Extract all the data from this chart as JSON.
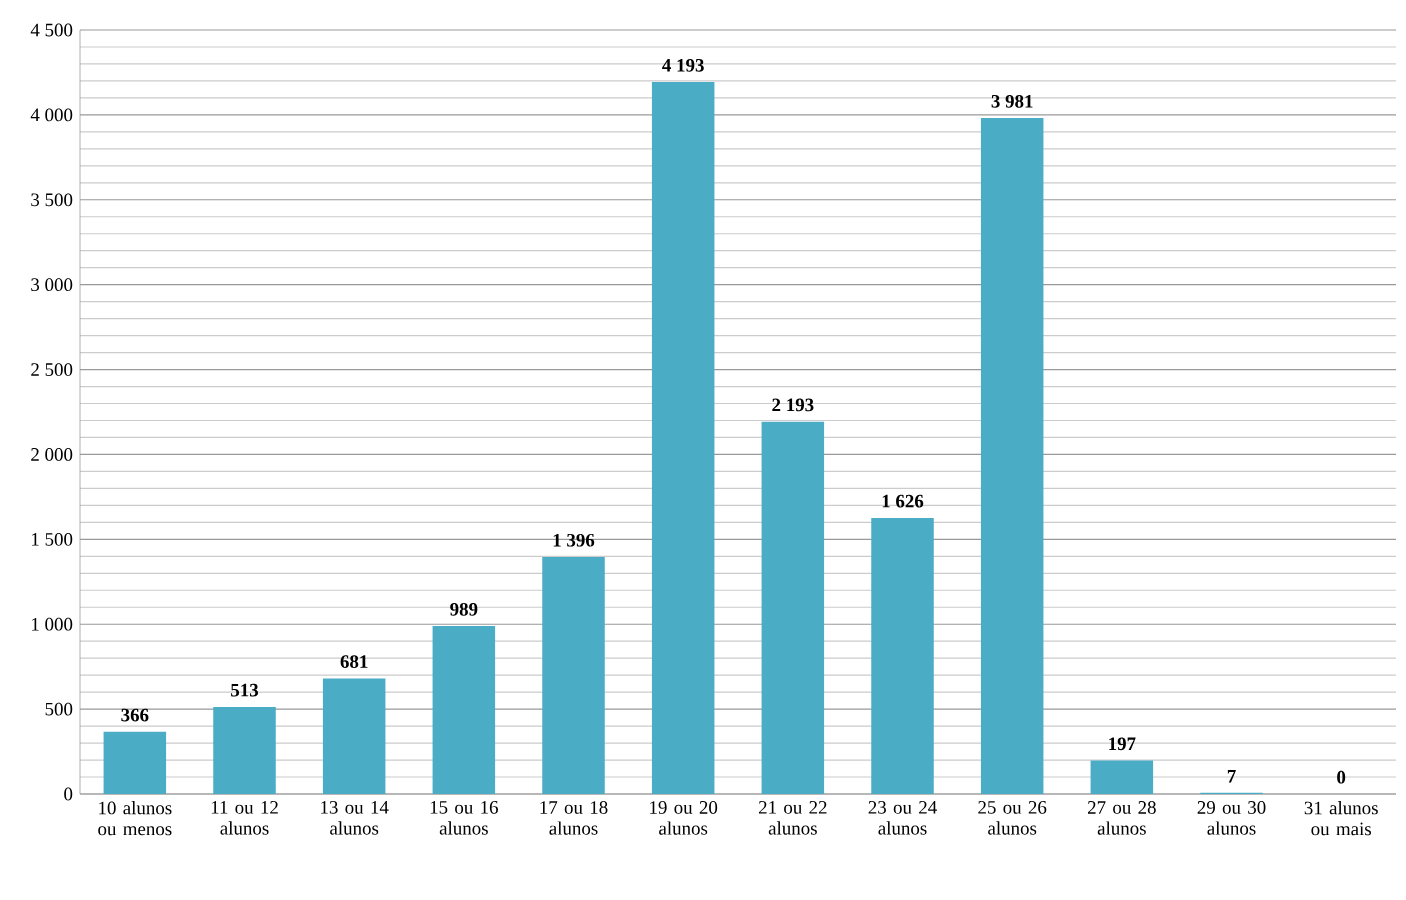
{
  "chart_data": {
    "type": "bar",
    "categories": [
      "10 alunos ou menos",
      "11 ou 12 alunos",
      "13 ou 14 alunos",
      "15 ou 16 alunos",
      "17 ou 18 alunos",
      "19 ou 20 alunos",
      "21 ou 22 alunos",
      "23 ou 24 alunos",
      "25 ou 26 alunos",
      "27 ou 28 alunos",
      "29 ou 30 alunos",
      "31 alunos ou mais"
    ],
    "values": [
      366,
      513,
      681,
      989,
      1396,
      4193,
      2193,
      1626,
      3981,
      197,
      7,
      0
    ],
    "value_labels": [
      "366",
      "513",
      "681",
      "989",
      "1 396",
      "4 193",
      "2 193",
      "1 626",
      "3 981",
      "197",
      "7",
      "0"
    ],
    "color": "#4bacc6",
    "ylim": [
      0,
      4500
    ],
    "yticks": [
      0,
      500,
      {
        "value": 1000,
        "label": "1 000"
      },
      {
        "value": 1500,
        "label": "1 500"
      },
      {
        "value": 2000,
        "label": "2 000"
      },
      {
        "value": 2500,
        "label": "2 500"
      },
      {
        "value": 3000,
        "label": "3 000"
      },
      {
        "value": 3500,
        "label": "3 500"
      },
      {
        "value": 4000,
        "label": "4 000"
      },
      {
        "value": 4500,
        "label": "4 500"
      }
    ],
    "grid": "y"
  }
}
